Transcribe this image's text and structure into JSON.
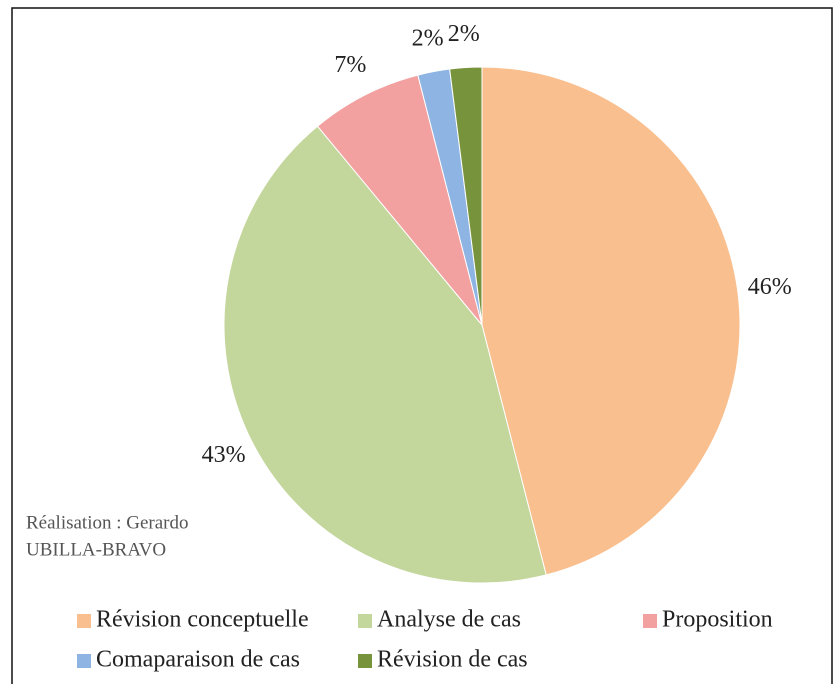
{
  "chart_data": {
    "type": "pie",
    "categories": [
      "Révision conceptuelle",
      "Analyse de cas",
      "Proposition",
      "Comaparaison de cas",
      "Révision de cas"
    ],
    "values": [
      46,
      43,
      7,
      2,
      2
    ],
    "value_labels": [
      "46%",
      "43%",
      "7%",
      "2%",
      "2%"
    ],
    "colors": [
      "#f9bf8f",
      "#c3d69b",
      "#f2a0a0",
      "#8eb4e3",
      "#77933c"
    ],
    "annotation": [
      "Réalisation : Gerardo",
      "UBILLA-BRAVO"
    ],
    "legend": "bottom"
  }
}
